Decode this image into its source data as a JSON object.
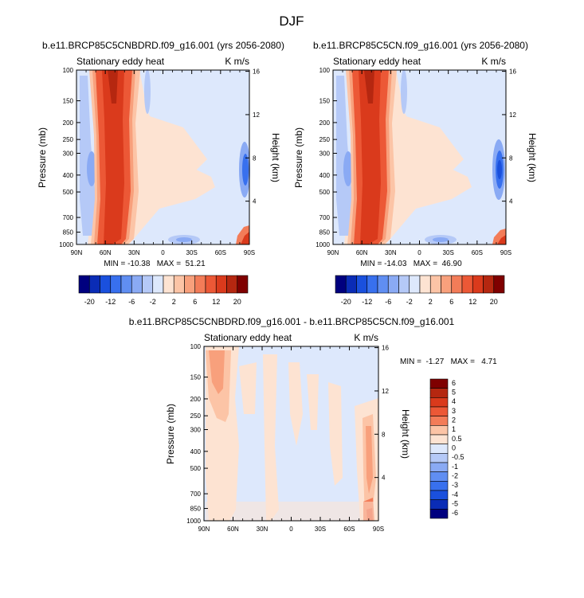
{
  "figure": {
    "title": "DJF"
  },
  "chart_data": [
    {
      "type": "heatmap",
      "title": "b.e11.BRCP85C5CNBDRD.f09_g16.001 (yrs 2056-2080)",
      "left_label": "Stationary eddy heat",
      "right_label": "K m/s",
      "ylabel": "Pressure (mb)",
      "y2label": "Height (km)",
      "x_ticks": [
        "90N",
        "60N",
        "30N",
        "0",
        "30S",
        "60S",
        "90S"
      ],
      "y_ticks": [
        "100",
        "150",
        "200",
        "250",
        "300",
        "400",
        "500",
        "700",
        "850",
        "1000"
      ],
      "y2_ticks": [
        "16",
        "12",
        "8",
        "4"
      ],
      "stats_text": "MIN = -10.38   MAX =  51.21",
      "min": -10.38,
      "max": 51.21,
      "colorbar_labels": [
        "-20",
        "-12",
        "-6",
        "-2",
        "2",
        "6",
        "12",
        "20"
      ]
    },
    {
      "type": "heatmap",
      "title": "b.e11.BRCP85C5CN.f09_g16.001 (yrs 2056-2080)",
      "left_label": "Stationary eddy heat",
      "right_label": "K m/s",
      "ylabel": "Pressure (mb)",
      "y2label": "Height (km)",
      "x_ticks": [
        "90N",
        "60N",
        "30N",
        "0",
        "30S",
        "60S",
        "90S"
      ],
      "y_ticks": [
        "100",
        "150",
        "200",
        "250",
        "300",
        "400",
        "500",
        "700",
        "850",
        "1000"
      ],
      "y2_ticks": [
        "16",
        "12",
        "8",
        "4"
      ],
      "stats_text": "MIN = -14.03   MAX =  46.90",
      "min": -14.03,
      "max": 46.9,
      "colorbar_labels": [
        "-20",
        "-12",
        "-6",
        "-2",
        "2",
        "6",
        "12",
        "20"
      ]
    },
    {
      "type": "heatmap",
      "title": "b.e11.BRCP85C5CNBDRD.f09_g16.001 - b.e11.BRCP85C5CN.f09_g16.001",
      "left_label": "Stationary eddy heat",
      "right_label": "K m/s",
      "ylabel": "Pressure (mb)",
      "y2label": "Height (km)",
      "x_ticks": [
        "90N",
        "60N",
        "30N",
        "0",
        "30S",
        "60S",
        "90S"
      ],
      "y_ticks": [
        "100",
        "150",
        "200",
        "250",
        "300",
        "400",
        "500",
        "700",
        "850",
        "1000"
      ],
      "y2_ticks": [
        "16",
        "12",
        "8",
        "4"
      ],
      "stats_text": "MIN =  -1.27   MAX =   4.71",
      "min": -1.27,
      "max": 4.71,
      "colorbar_labels": [
        "6",
        "5",
        "4",
        "3",
        "2",
        "1",
        "0.5",
        "0",
        "-0.5",
        "-1",
        "-2",
        "-3",
        "-4",
        "-5",
        "-6"
      ]
    }
  ],
  "colors": {
    "full_scale": [
      "#00007f",
      "#0a2cb6",
      "#1a50dd",
      "#3870ee",
      "#608ef2",
      "#8aaaf4",
      "#b5c9f7",
      "#dde8fc",
      "#fde3d2",
      "#fcc4a6",
      "#f8a07c",
      "#f37c58",
      "#ec5836",
      "#da3a1c",
      "#b52710",
      "#7f0000"
    ],
    "diff_scale": [
      "#7f0000",
      "#b52710",
      "#da3a1c",
      "#ec5836",
      "#f37c58",
      "#fcc4a6",
      "#fde3d2",
      "#dde8fc",
      "#b5c9f7",
      "#8aaaf4",
      "#608ef2",
      "#3870ee",
      "#1a50dd",
      "#0a2cb6",
      "#00007f"
    ]
  }
}
